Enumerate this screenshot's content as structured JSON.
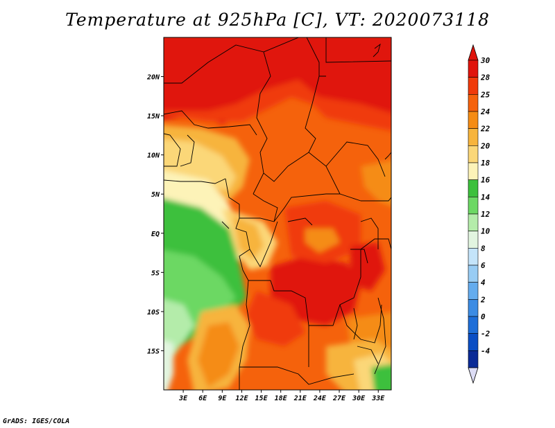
{
  "title": "Temperature at 925hPa [C], VT: 2020073118",
  "credit": "GrADS: IGES/COLA",
  "map": {
    "region": "Central Africa",
    "lat_labels": [
      {
        "label": "20N",
        "lat": 20
      },
      {
        "label": "15N",
        "lat": 15
      },
      {
        "label": "10N",
        "lat": 10
      },
      {
        "label": "5N",
        "lat": 5
      },
      {
        "label": "EQ",
        "lat": 0
      },
      {
        "label": "5S",
        "lat": -5
      },
      {
        "label": "10S",
        "lat": -10
      },
      {
        "label": "15S",
        "lat": -15
      }
    ],
    "lon_labels": [
      {
        "label": "3E",
        "lon": 3
      },
      {
        "label": "6E",
        "lon": 6
      },
      {
        "label": "9E",
        "lon": 9
      },
      {
        "label": "12E",
        "lon": 12
      },
      {
        "label": "15E",
        "lon": 15
      },
      {
        "label": "18E",
        "lon": 18
      },
      {
        "label": "21E",
        "lon": 21
      },
      {
        "label": "24E",
        "lon": 24
      },
      {
        "label": "27E",
        "lon": 27
      },
      {
        "label": "30E",
        "lon": 30
      },
      {
        "label": "33E",
        "lon": 33
      }
    ],
    "lon_range": [
      0,
      35
    ],
    "lat_range": [
      -20,
      25
    ]
  },
  "colorbar": {
    "levels": [
      {
        "label": "30",
        "color": "#e0140c"
      },
      {
        "label": "28",
        "color": "#f03a0a"
      },
      {
        "label": "25",
        "color": "#f5620c"
      },
      {
        "label": "24",
        "color": "#f58c14"
      },
      {
        "label": "22",
        "color": "#f7b43c"
      },
      {
        "label": "20",
        "color": "#fbd778"
      },
      {
        "label": "18",
        "color": "#fdf3b8"
      },
      {
        "label": "16",
        "color": "#3cc03c"
      },
      {
        "label": "14",
        "color": "#6cd864"
      },
      {
        "label": "12",
        "color": "#b4ecaa"
      },
      {
        "label": "10",
        "color": "#e2f5e0"
      },
      {
        "label": "8",
        "color": "#c4e4fa"
      },
      {
        "label": "6",
        "color": "#98ccf4"
      },
      {
        "label": "4",
        "color": "#64acee"
      },
      {
        "label": "2",
        "color": "#3c8ce4"
      },
      {
        "label": "0",
        "color": "#1e6ed8"
      },
      {
        "label": "-2",
        "color": "#0a4ec4"
      },
      {
        "label": "-4",
        "color": "#0a2a96"
      }
    ],
    "bottom_color": "#dcdcf5",
    "top_color": "#e0140c"
  }
}
